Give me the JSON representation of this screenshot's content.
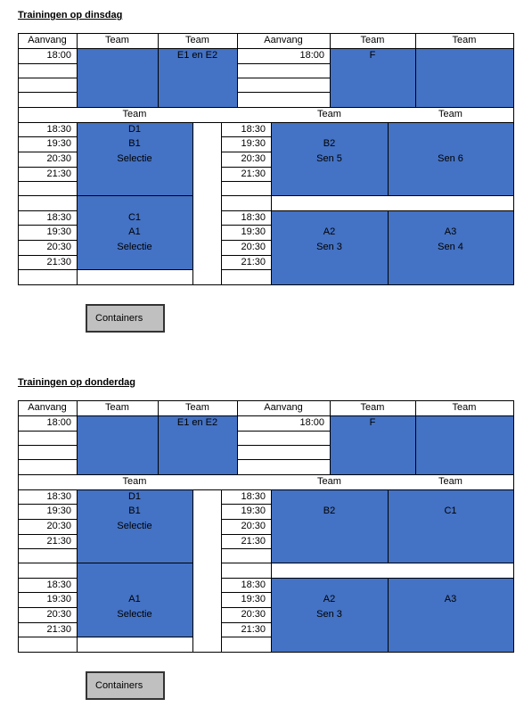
{
  "sections": [
    {
      "title": "Trainingen op dinsdag",
      "top": {
        "headers": [
          "Aanvang",
          "Team",
          "Team",
          "Aanvang",
          "Team",
          "Team"
        ],
        "left_start": "18:00",
        "left_team_2": "E1 en E2",
        "right_start": "18:00",
        "right_team_1": "F"
      },
      "bottom": {
        "headers": [
          "Team",
          "Team",
          "Team"
        ],
        "blocks": [
          {
            "left_times": [
              "18:30",
              "19:30",
              "20:30",
              "21:30"
            ],
            "left_team": [
              "D1",
              "B1",
              "Selectie",
              null
            ],
            "right_times": [
              "18:30",
              "19:30",
              "20:30",
              "21:30"
            ],
            "right_team_1": [
              null,
              "B2",
              "Sen 5",
              null
            ],
            "right_team_2": [
              null,
              null,
              "Sen 6",
              null
            ]
          },
          {
            "left_times": [
              "18:30",
              "19:30",
              "20:30",
              "21:30"
            ],
            "left_team": [
              "C1",
              "A1",
              "Selectie",
              null
            ],
            "right_times": [
              "18:30",
              "19:30",
              "20:30",
              "21:30"
            ],
            "right_team_1": [
              null,
              "A2",
              "Sen 3",
              null
            ],
            "right_team_2": [
              null,
              "A3",
              "Sen 4",
              null
            ]
          }
        ]
      },
      "button": "Containers"
    },
    {
      "title": "Trainingen op donderdag",
      "top": {
        "headers": [
          "Aanvang",
          "Team",
          "Team",
          "Aanvang",
          "Team",
          "Team"
        ],
        "left_start": "18:00",
        "left_team_2": "E1 en E2",
        "right_start": "18:00",
        "right_team_1": "F"
      },
      "bottom": {
        "headers": [
          "Team",
          "Team",
          "Team"
        ],
        "blocks": [
          {
            "left_times": [
              "18:30",
              "19:30",
              "20:30",
              "21:30"
            ],
            "left_team": [
              "D1",
              "B1",
              "Selectie",
              null
            ],
            "right_times": [
              "18:30",
              "19:30",
              "20:30",
              "21:30"
            ],
            "right_team_1": [
              null,
              "B2",
              null,
              null
            ],
            "right_team_2": [
              null,
              "C1",
              null,
              null
            ]
          },
          {
            "left_times": [
              "18:30",
              "19:30",
              "20:30",
              "21:30"
            ],
            "left_team": [
              null,
              "A1",
              "Selectie",
              null
            ],
            "right_times": [
              "18:30",
              "19:30",
              "20:30",
              "21:30"
            ],
            "right_team_1": [
              null,
              "A2",
              "Sen 3",
              null
            ],
            "right_team_2": [
              null,
              "A3",
              null,
              null
            ]
          }
        ]
      },
      "button": "Containers"
    }
  ]
}
